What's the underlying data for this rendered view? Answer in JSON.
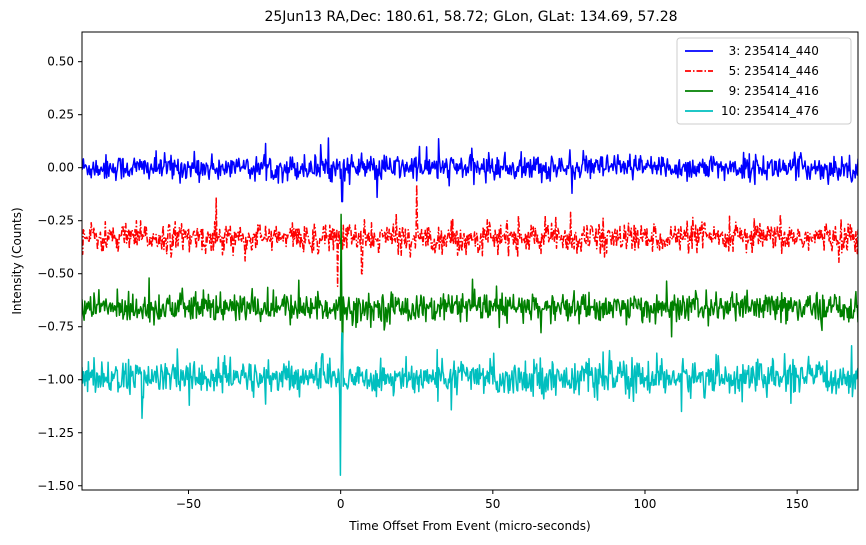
{
  "chart_data": {
    "type": "line",
    "title": "25Jun13 RA,Dec:  180.61,  58.72; GLon, GLat:  134.69,  57.28",
    "xlabel": "Time Offset From Event (micro-seconds)",
    "ylabel": "Intensity (Counts)",
    "xlim": [
      -85,
      170
    ],
    "ylim": [
      -1.52,
      0.64
    ],
    "xticks": [
      -50,
      0,
      50,
      100,
      150
    ],
    "xtick_labels": [
      "−50",
      "0",
      "50",
      "100",
      "150"
    ],
    "yticks": [
      0.5,
      0.25,
      0.0,
      -0.25,
      -0.5,
      -0.75,
      -1.0,
      -1.25,
      -1.5
    ],
    "ytick_labels": [
      "0.50",
      "0.25",
      "0.00",
      "−0.25",
      "−0.50",
      "−0.75",
      "−1.00",
      "−1.25",
      "−1.50"
    ],
    "grid": false,
    "legend_position": "top-right",
    "series": [
      {
        "name": "3: 235414_440",
        "label": "  3: 235414_440",
        "color": "#0000ff",
        "style": "solid",
        "baseline": 0.0,
        "noise_sd": 0.03,
        "features": [
          {
            "x": -4,
            "value": 0.14
          },
          {
            "x": 0.5,
            "value": -0.16
          },
          {
            "x": 12,
            "value": -0.14
          },
          {
            "x": 26,
            "value": 0.1
          }
        ]
      },
      {
        "name": "5: 235414_446",
        "label": "  5: 235414_446",
        "color": "#ff0000",
        "style": "dashdot",
        "baseline": -0.33,
        "noise_sd": 0.035,
        "features": [
          {
            "x": -41,
            "value": -0.14
          },
          {
            "x": -1,
            "value": -0.56
          },
          {
            "x": 25,
            "value": -0.08
          },
          {
            "x": 7,
            "value": -0.5
          }
        ]
      },
      {
        "name": "9: 235414_416",
        "label": "  9: 235414_416",
        "color": "#008000",
        "style": "solid",
        "baseline": -0.66,
        "noise_sd": 0.035,
        "features": [
          {
            "x": 0.2,
            "value": -0.22
          },
          {
            "x": 0.6,
            "value": -0.9
          },
          {
            "x": -63,
            "value": -0.52
          }
        ]
      },
      {
        "name": "10: 235414_476",
        "label": "10: 235414_476",
        "color": "#00bfbf",
        "style": "solid",
        "baseline": -0.99,
        "noise_sd": 0.04,
        "features": [
          {
            "x": 0.0,
            "value": -1.45
          },
          {
            "x": 0.5,
            "value": -0.78
          },
          {
            "x": 112,
            "value": -1.15
          },
          {
            "x": 168,
            "value": -0.84
          }
        ]
      }
    ],
    "sample_count": 1100
  }
}
